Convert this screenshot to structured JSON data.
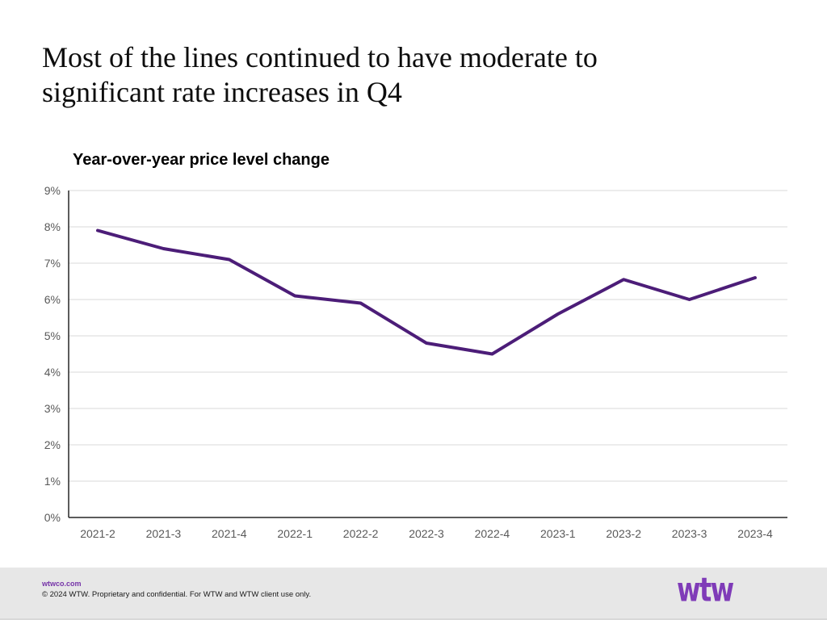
{
  "slide": {
    "title_line1": "Most of the lines continued to have moderate to",
    "title_line2": "significant rate increases in Q4"
  },
  "chart_data": {
    "type": "line",
    "title": "Year-over-year price level change",
    "categories": [
      "2021-2",
      "2021-3",
      "2021-4",
      "2022-1",
      "2022-2",
      "2022-3",
      "2022-4",
      "2023-1",
      "2023-2",
      "2023-3",
      "2023-4"
    ],
    "series": [
      {
        "name": "Year-over-year price level change",
        "values": [
          7.9,
          7.4,
          7.1,
          6.1,
          5.9,
          4.8,
          4.5,
          5.6,
          6.55,
          6.0,
          6.6
        ]
      }
    ],
    "xlabel": "",
    "ylabel": "",
    "ylim": [
      0,
      9
    ],
    "ytick_step": 1,
    "ytick_suffix": "%",
    "grid": true,
    "legend": "none"
  },
  "footer": {
    "website": "wtwco.com",
    "copyright": "© 2024 WTW. Proprietary and confidential. For WTW and WTW client use only.",
    "logo_text": "wtw"
  },
  "colors": {
    "line": "#4c1d78",
    "gridline": "#d9d9d9",
    "axis_line": "#262626",
    "axis_text": "#595959",
    "logo_purple": "#7f3bb8",
    "footer_bg": "#e7e7e7"
  }
}
